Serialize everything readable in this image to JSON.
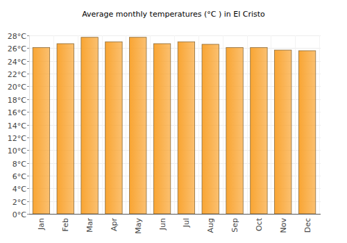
{
  "chart_data": {
    "type": "bar",
    "title": "Average monthly temperatures (°C ) in El Cristo",
    "categories": [
      "Jan",
      "Feb",
      "Mar",
      "Apr",
      "May",
      "Jun",
      "Jul",
      "Aug",
      "Sep",
      "Oct",
      "Nov",
      "Dec"
    ],
    "values": [
      26.1,
      26.7,
      27.7,
      27.0,
      27.7,
      26.7,
      27.0,
      26.6,
      26.1,
      26.1,
      25.7,
      25.6
    ],
    "color": "#f9a533",
    "ylim": [
      0,
      28
    ],
    "yticks": [
      {
        "value": 0,
        "label": "0°C"
      },
      {
        "value": 2,
        "label": "2°C"
      },
      {
        "value": 4,
        "label": "4°C"
      },
      {
        "value": 6,
        "label": "6°C"
      },
      {
        "value": 8,
        "label": "8°C"
      },
      {
        "value": 10,
        "label": "10°C"
      },
      {
        "value": 12,
        "label": "12°C"
      },
      {
        "value": 14,
        "label": "14°C"
      },
      {
        "value": 16,
        "label": "16°C"
      },
      {
        "value": 18,
        "label": "18°C"
      },
      {
        "value": 20,
        "label": "20°C"
      },
      {
        "value": 22,
        "label": "22°C"
      },
      {
        "value": 24,
        "label": "24°C"
      },
      {
        "value": 26,
        "label": "26°C"
      },
      {
        "value": 28,
        "label": "28°C"
      }
    ],
    "grid": true
  }
}
